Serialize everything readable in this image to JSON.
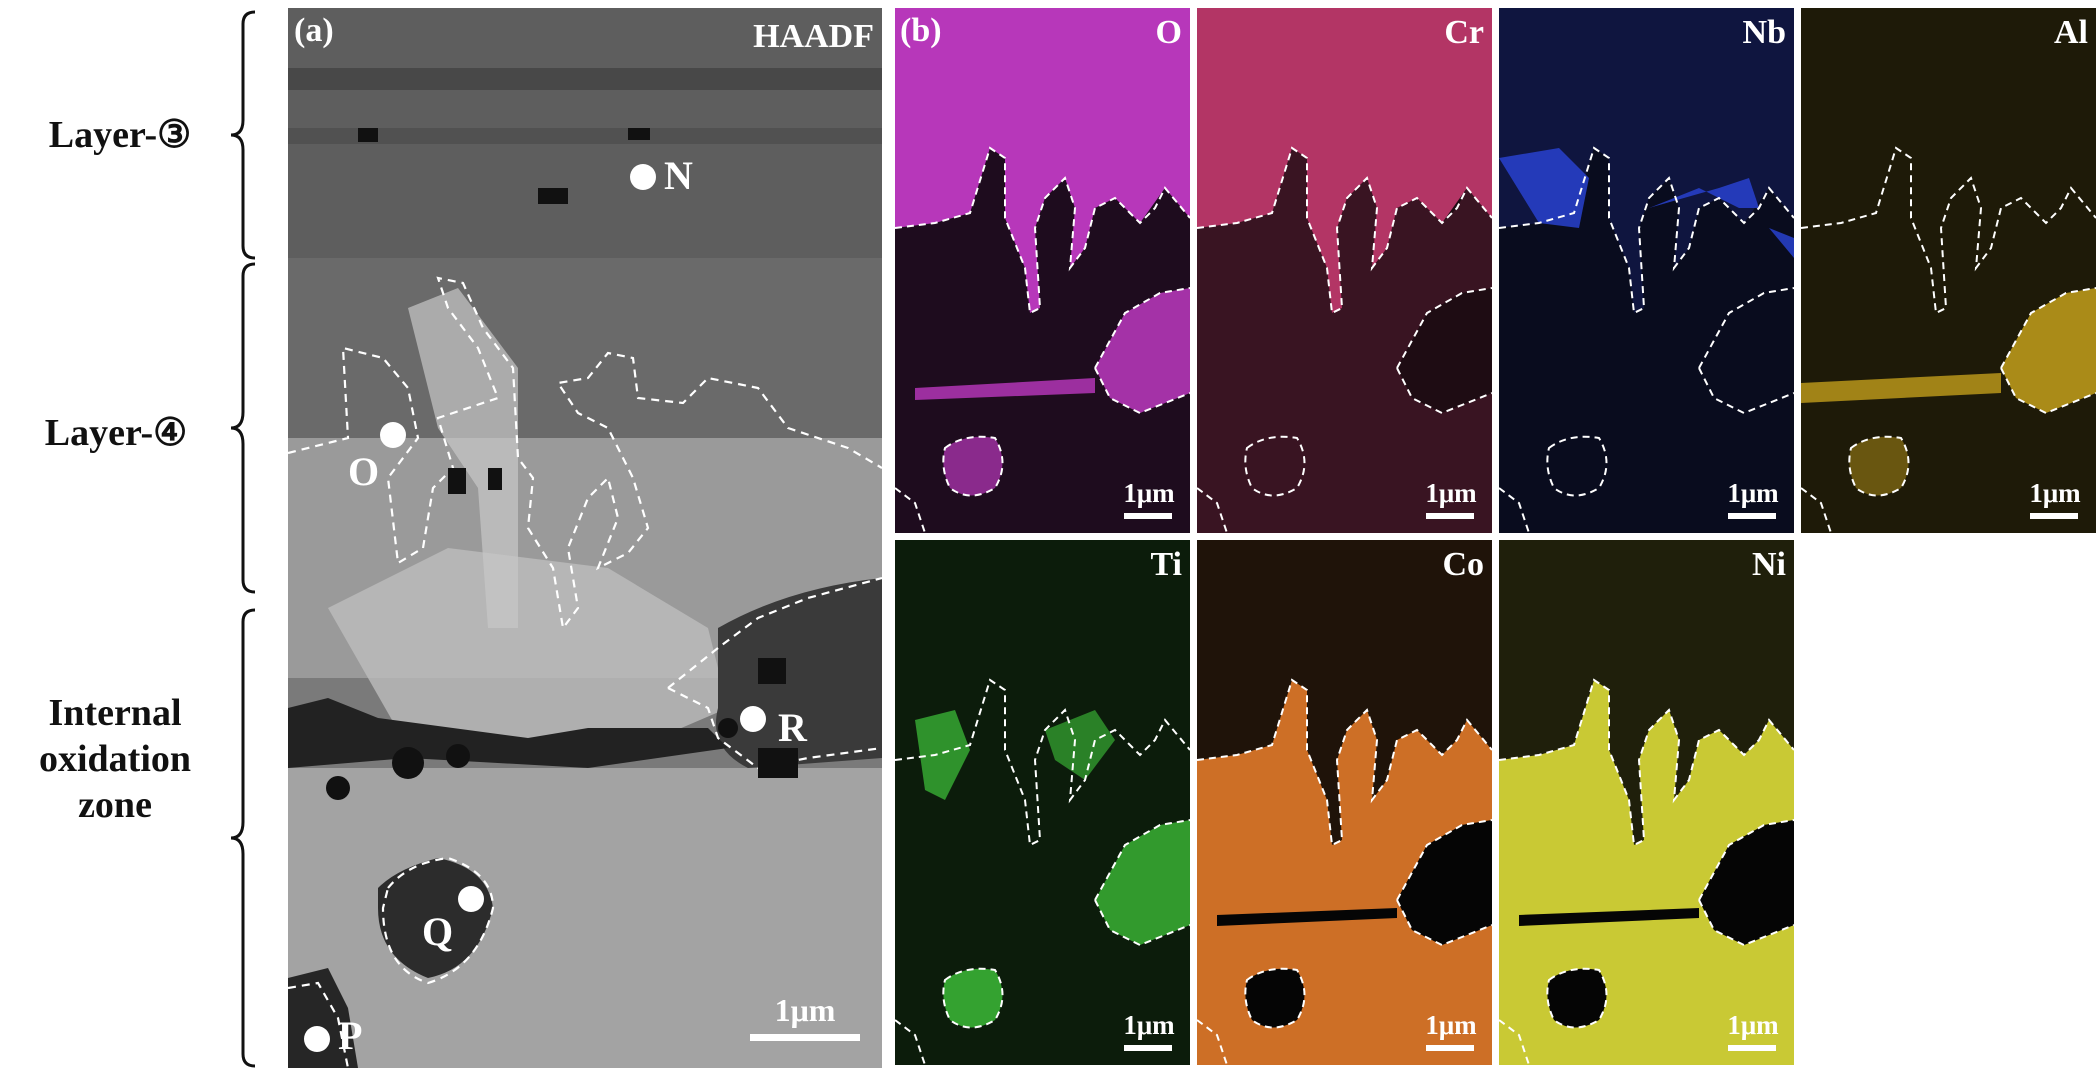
{
  "side_labels": {
    "layer3": "Layer-③",
    "layer4": "Layer-④",
    "internal": [
      "Internal",
      "oxidation",
      "zone"
    ]
  },
  "panel_a": {
    "tag": "(a)",
    "mode": "HAADF",
    "points": [
      "N",
      "O",
      "R",
      "Q",
      "P"
    ],
    "scalebar": "1μm"
  },
  "panel_b": {
    "tag": "(b)"
  },
  "maps": [
    {
      "element": "O",
      "color": "#d23fd6",
      "scalebar": "1μm"
    },
    {
      "element": "Cr",
      "color": "#d8407a",
      "scalebar": "1μm"
    },
    {
      "element": "Nb",
      "color": "#2b45d8",
      "scalebar": "1μm"
    },
    {
      "element": "Al",
      "color": "#d9b11e",
      "scalebar": "1μm"
    },
    {
      "element": "Ti",
      "color": "#3fc43a",
      "scalebar": "1μm"
    },
    {
      "element": "Co",
      "color": "#e07a2a",
      "scalebar": "1μm"
    },
    {
      "element": "Ni",
      "color": "#dcdc38",
      "scalebar": "1μm"
    }
  ]
}
